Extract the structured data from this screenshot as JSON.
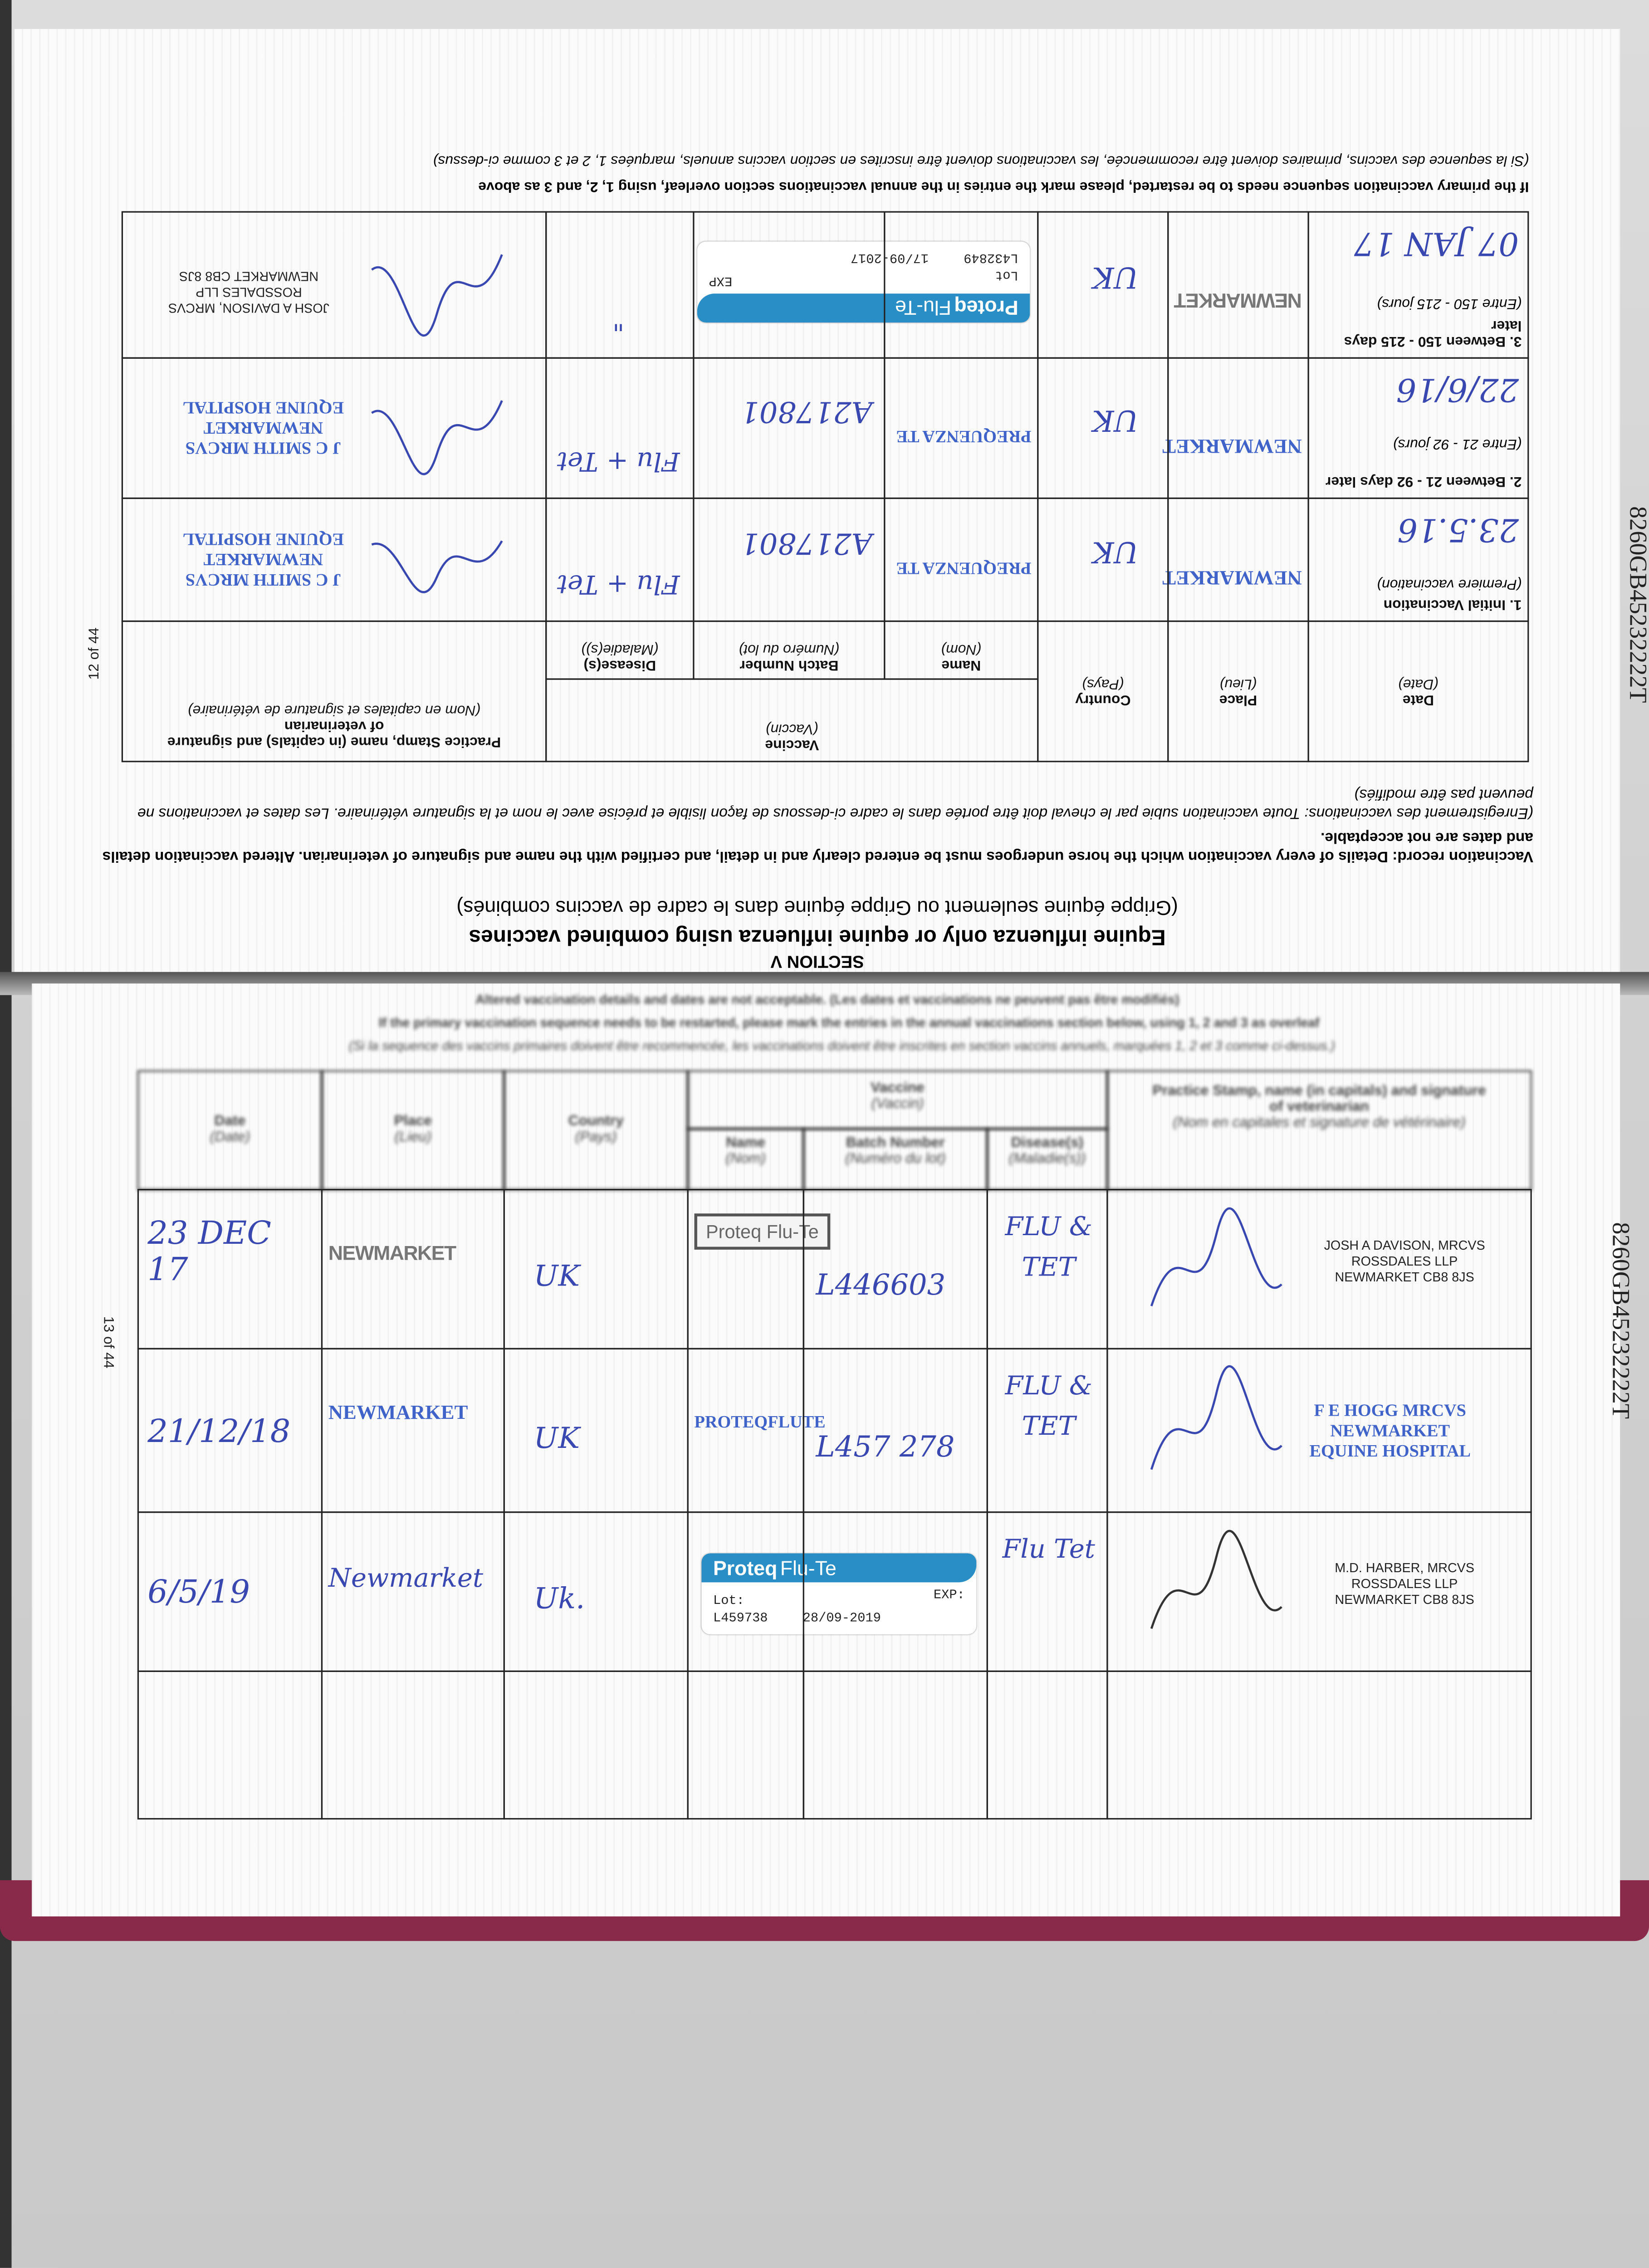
{
  "passport_number": "8260GB45232222T",
  "top_page": {
    "page_label": "12 of 44",
    "section": "SECTION V",
    "heading": "Equine influenza only or equine influenza using combined vaccines",
    "heading_fr": "(Grippe équine seulement ou Grippe équine dans le cadre de vaccins combinés)",
    "record_text": "Vaccination record: Details of every vaccination which the horse undergoes must be entered clearly and in detail, and certified with the name and signature of veterinarian. Altered vaccination details and dates are not acceptable.",
    "record_text_fr": "(Enregistrement des vaccinations: Toute vaccination subie par le cheval doit être portée dans le cadre ci-dessous de façon lisible et précise avec le nom et la signature vétérinaire. Les dates et vaccinations ne peuvent pas être modifiés)",
    "note": "If the primary vaccination sequence needs to be restarted, please mark the entries in the annual vaccinations section overleaf, using 1, 2, and 3 as above",
    "note_fr": "(Si la sequence des vaccins, primaires doivent être recommencée, les vaccinations doivent être inscrites en section vaccins annuels, marquées 1, 2 et 3 comme ci-dessus)",
    "headers": {
      "date": "Date",
      "date_fr": "(Date)",
      "place": "Place",
      "place_fr": "(Lieu)",
      "country": "Country",
      "country_fr": "(Pays)",
      "vaccine": "Vaccine",
      "vaccine_fr": "(Vaccin)",
      "name": "Name",
      "name_fr": "(Nom)",
      "batch": "Batch Number",
      "batch_fr": "(Numéro du lot)",
      "disease": "Disease(s)",
      "disease_fr": "(Maladie(s))",
      "vet": "Practice Stamp, name (in capitals) and signature of veterinarian",
      "vet_fr": "(Nom en capitales et signature de vétérinaire)"
    },
    "rows": [
      {
        "label": "1. Initial Vaccination",
        "label_sub": "(Premiere vaccination)",
        "date": "23.5.16",
        "place": "NEWMARKET",
        "country": "UK",
        "name": "PREQUENZA TE",
        "batch": "A217801",
        "disease": "Flu + Tet",
        "vet": [
          "J C SMITH MRCVS",
          "NEWMARKET",
          "EQUINE HOSPITAL"
        ]
      },
      {
        "label": "2. Between 21 - 92 days later",
        "label_sub": "(Entre 21 - 92 jours)",
        "date": "22/6/16",
        "place": "NEWMARKET",
        "country": "UK",
        "name": "PREQUENZA TE",
        "batch": "A217801",
        "disease": "Flu + Tet",
        "vet": [
          "J C SMITH MRCVS",
          "NEWMARKET",
          "EQUINE HOSPITAL"
        ]
      },
      {
        "label": "3. Between 150 - 215 days later",
        "label_sub": "(Entre 150 - 215 jours)",
        "date": "07 JAN 17",
        "place": "NEWMARKET",
        "country": "UK",
        "sticker": {
          "brand": "Proteq",
          "product": "Flu-Te",
          "lot_label": "Lot",
          "lot": "L432849",
          "exp_label": "EXP",
          "exp": "17/09-2017"
        },
        "disease": "\"",
        "vet": [
          "JOSH A DAVISON, MRCVS",
          "ROSSDALES LLP",
          "NEWMARKET CB8 8JS"
        ]
      }
    ]
  },
  "bottom_page": {
    "page_label": "13 of 44",
    "blurred_lines": [
      "Altered vaccination details and dates are not acceptable. (Les dates et vaccinations ne peuvent pas être modifiés)",
      "If the primary vaccination sequence needs to be restarted, please mark the entries in the annual vaccinations section below, using 1, 2 and 3 as overleaf",
      "(Si la sequence des vaccins primaires doivent être recommencée, les vaccinations doivent être inscrites en section vaccins annuels, marquées 1, 2 et 3 comme ci-dessus.)"
    ],
    "headers": {
      "date": "Date",
      "date_fr": "(Date)",
      "place": "Place",
      "place_fr": "(Lieu)",
      "country": "Country",
      "country_fr": "(Pays)",
      "vaccine": "Vaccine",
      "vaccine_fr": "(Vaccin)",
      "name": "Name",
      "name_fr": "(Nom)",
      "batch": "Batch Number",
      "batch_fr": "(Numéro du lot)",
      "disease": "Disease(s)",
      "disease_fr": "(Maladie(s))",
      "vet": "Practice Stamp, name (in capitals) and signature of veterinarian",
      "vet_fr": "(Nom en capitales et signature de vétérinaire)"
    },
    "rows": [
      {
        "date": "23 DEC 17",
        "place": "NEWMARKET",
        "country": "UK",
        "name": "Proteq Flu-Te",
        "batch": "L446603",
        "disease": "FLU & TET",
        "vet": [
          "JOSH A DAVISON, MRCVS",
          "ROSSDALES LLP",
          "NEWMARKET CB8 8JS"
        ]
      },
      {
        "date": "21/12/18",
        "place": "NEWMARKET",
        "country": "UK",
        "name": "PROTEQFLUTE",
        "batch": "L457 278",
        "disease": "FLU & TET",
        "vet": [
          "F E HOGG MRCVS",
          "NEWMARKET",
          "EQUINE HOSPITAL"
        ]
      },
      {
        "date": "6/5/19",
        "place": "Newmarket",
        "country": "Uk.",
        "sticker": {
          "brand": "Proteq",
          "product": "Flu-Te",
          "lot_label": "Lot:",
          "lot": "L459738",
          "exp_label": "EXP:",
          "exp": "28/09-2019"
        },
        "disease": "Flu Tet",
        "vet": [
          "M.D. HARBER, MRCVS",
          "ROSSDALES LLP",
          "NEWMARKET CB8 8JS"
        ]
      },
      {}
    ]
  },
  "colors": {
    "ink": "#3848b0",
    "stamp_blue": "#3f63c8",
    "sticker": "#2a8ec6",
    "cover": "#8a2a4a"
  }
}
